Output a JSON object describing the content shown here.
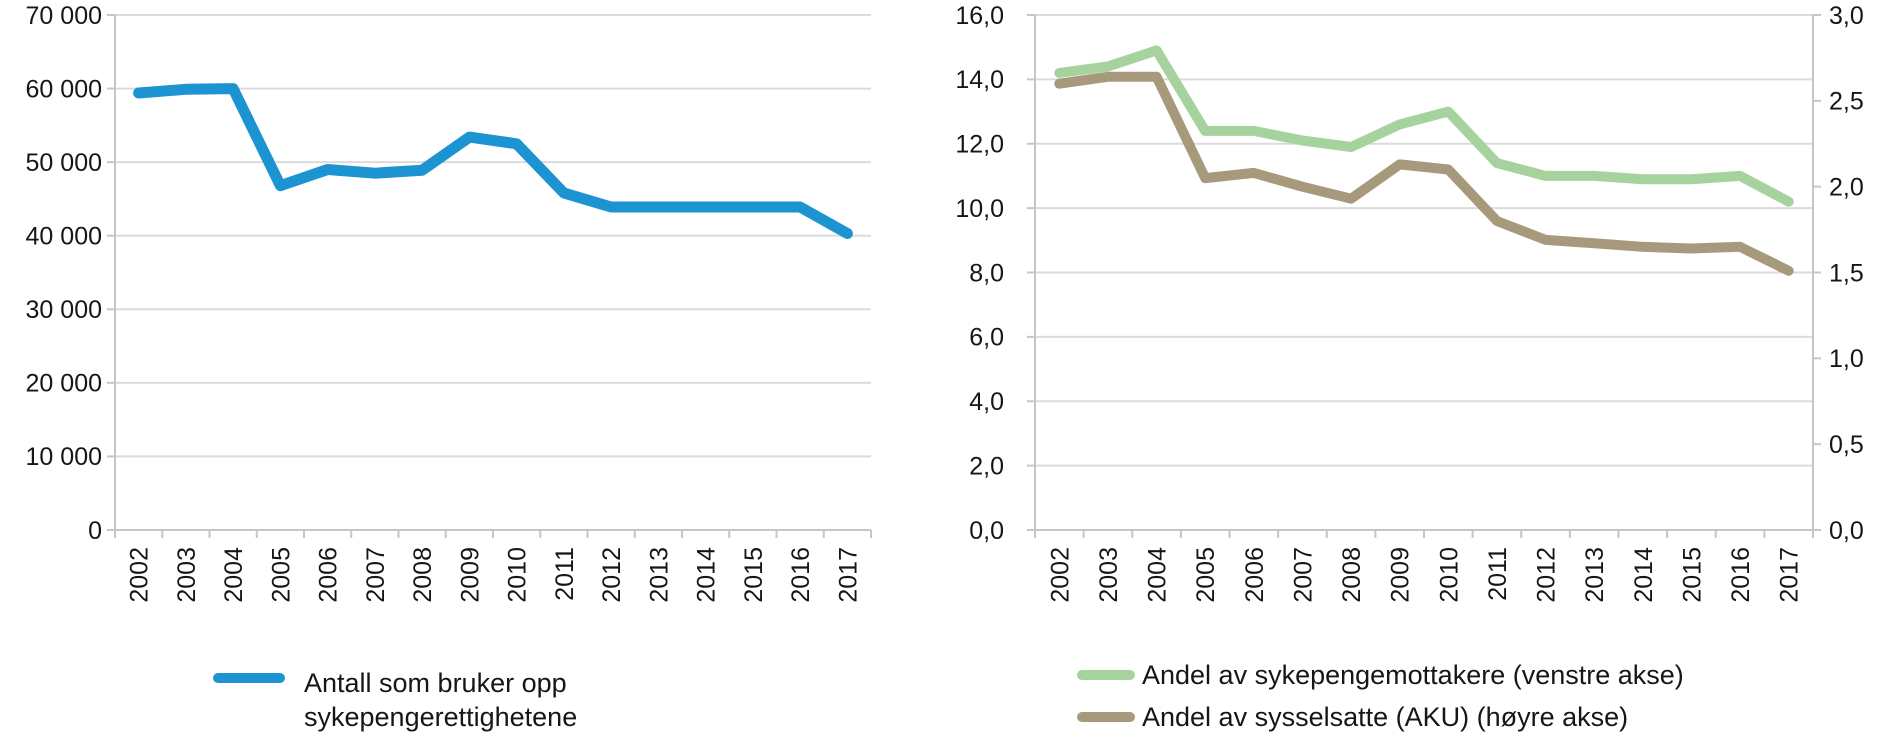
{
  "chart_data": [
    {
      "type": "line",
      "name": "left-chart-antall",
      "title": "",
      "x": [
        "2002",
        "2003",
        "2004",
        "2005",
        "2006",
        "2007",
        "2008",
        "2009",
        "2010",
        "2011",
        "2012",
        "2013",
        "2014",
        "2015",
        "2016",
        "2017"
      ],
      "y_axis": {
        "min": 0,
        "max": 70000,
        "step": 10000,
        "tick_labels": [
          "0",
          "10 000",
          "20 000",
          "30 000",
          "40 000",
          "50 000",
          "60 000",
          "70 000"
        ]
      },
      "grid": true,
      "legend_position": "bottom",
      "series": [
        {
          "name": "Antall som bruker opp sykepengerettighetene",
          "axis": "left",
          "color": "#1D94D2",
          "values": [
            59400,
            59900,
            60000,
            46800,
            49000,
            48500,
            48900,
            53400,
            52500,
            45800,
            43900,
            43900,
            43900,
            43900,
            43900,
            40300
          ]
        }
      ],
      "legend": {
        "entries": [
          {
            "lines": [
              "Antall som bruker opp",
              "sykepengerettighetene"
            ]
          }
        ]
      }
    },
    {
      "type": "line",
      "name": "right-chart-andel",
      "title": "",
      "x": [
        "2002",
        "2003",
        "2004",
        "2005",
        "2006",
        "2007",
        "2008",
        "2009",
        "2010",
        "2011",
        "2012",
        "2013",
        "2014",
        "2015",
        "2016",
        "2017"
      ],
      "y_axis_left": {
        "min": 0,
        "max": 16,
        "step": 2,
        "tick_labels": [
          "0,0",
          "2,0",
          "4,0",
          "6,0",
          "8,0",
          "10,0",
          "12,0",
          "14,0",
          "16,0"
        ]
      },
      "y_axis_right": {
        "min": 0,
        "max": 3,
        "step": 0.5,
        "tick_labels": [
          "0,0",
          "0,5",
          "1,0",
          "1,5",
          "2,0",
          "2,5",
          "3,0"
        ]
      },
      "grid": true,
      "legend_position": "bottom",
      "series": [
        {
          "name": "Andel av sykepengemottakere (venstre akse)",
          "axis": "left",
          "color": "#A6D29E",
          "values": [
            14.2,
            14.4,
            14.9,
            12.4,
            12.4,
            12.1,
            11.9,
            12.6,
            13.0,
            11.4,
            11.0,
            11.0,
            10.9,
            10.9,
            11.0,
            10.2
          ]
        },
        {
          "name": "Andel av sysselsatte (AKU) (høyre akse)",
          "axis": "right",
          "color": "#A79A7C",
          "values": [
            2.6,
            2.64,
            2.64,
            2.05,
            2.08,
            2.0,
            1.93,
            2.13,
            2.1,
            1.8,
            1.69,
            1.67,
            1.65,
            1.64,
            1.65,
            1.51
          ]
        }
      ],
      "legend": {
        "entries": [
          {
            "lines": [
              "Andel av sykepengemottakere (venstre akse)"
            ]
          },
          {
            "lines": [
              "Andel av sysselsatte (AKU) (høyre akse)"
            ]
          }
        ]
      }
    }
  ],
  "colors": {
    "grid": "#DBDBDB",
    "axis": "#C6C6C6",
    "text": "#161616",
    "background": "#FFFFFF"
  }
}
